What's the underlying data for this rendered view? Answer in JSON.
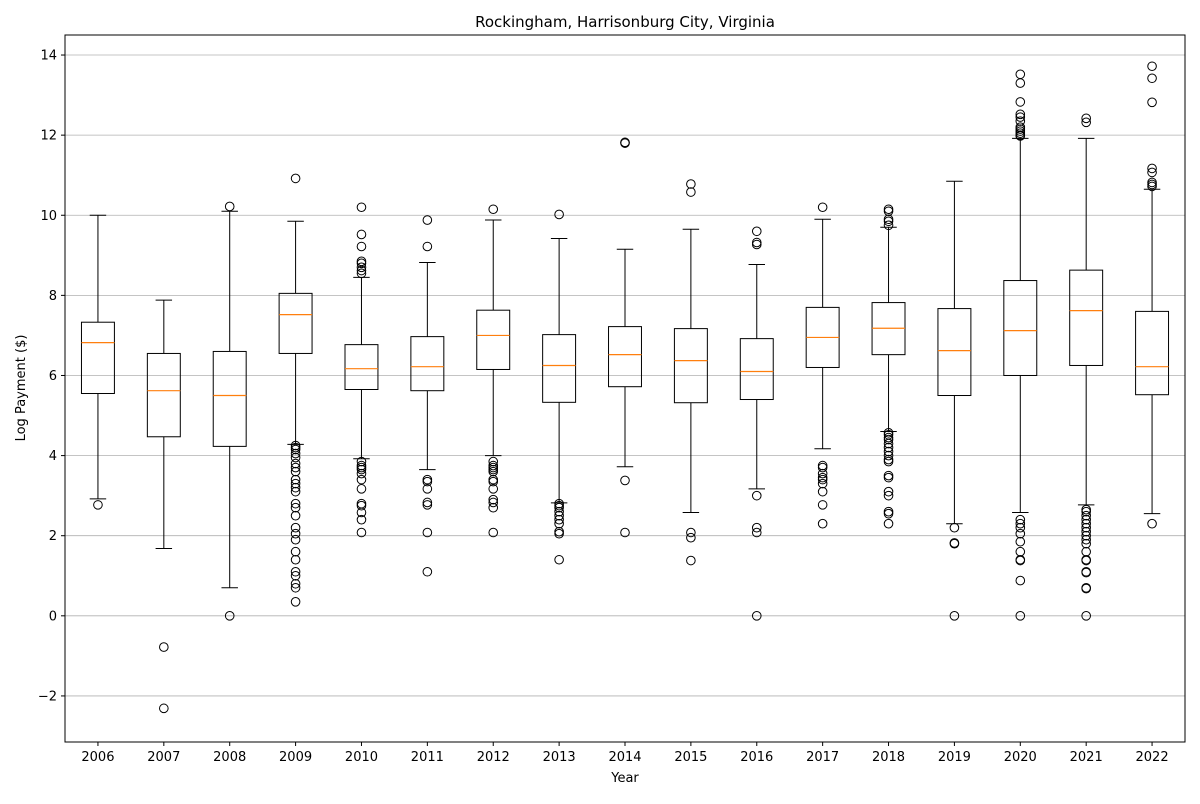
{
  "chart_data": {
    "type": "boxplot",
    "title": "Rockingham, Harrisonburg City, Virginia",
    "xlabel": "Year",
    "ylabel": "Log Payment ($)",
    "ylim": [
      -3.15,
      14.5
    ],
    "yticks": [
      -2,
      0,
      2,
      4,
      6,
      8,
      10,
      12,
      14
    ],
    "grid": "horizontal",
    "colors": {
      "box": "#000000",
      "median": "#ff7f0e",
      "grid": "#b0b0b0"
    },
    "boxes": [
      {
        "label": "2006",
        "whisker_low": 2.92,
        "q1": 5.55,
        "median": 6.82,
        "q3": 7.33,
        "whisker_high": 10.0,
        "outliers": [
          2.77
        ]
      },
      {
        "label": "2007",
        "whisker_low": 1.68,
        "q1": 4.47,
        "median": 5.62,
        "q3": 6.55,
        "whisker_high": 7.88,
        "outliers": [
          -0.78,
          -2.31
        ]
      },
      {
        "label": "2008",
        "whisker_low": 0.7,
        "q1": 4.23,
        "median": 5.5,
        "q3": 6.6,
        "whisker_high": 10.1,
        "outliers": [
          0.0,
          10.22
        ]
      },
      {
        "label": "2009",
        "whisker_low": 4.28,
        "q1": 6.55,
        "median": 7.52,
        "q3": 8.05,
        "whisker_high": 9.85,
        "outliers": [
          10.92,
          4.25,
          4.2,
          4.15,
          4.05,
          3.95,
          3.8,
          3.7,
          3.6,
          3.4,
          3.3,
          3.2,
          3.1,
          2.8,
          2.7,
          2.5,
          2.2,
          2.05,
          1.9,
          1.6,
          1.4,
          1.1,
          1.0,
          0.8,
          0.7,
          0.35
        ]
      },
      {
        "label": "2010",
        "whisker_low": 3.92,
        "q1": 5.65,
        "median": 6.17,
        "q3": 6.77,
        "whisker_high": 8.45,
        "outliers": [
          10.2,
          9.52,
          9.22,
          8.85,
          8.8,
          8.7,
          8.62,
          8.55,
          3.85,
          3.75,
          3.7,
          3.65,
          3.55,
          3.4,
          3.17,
          2.8,
          2.75,
          2.58,
          2.4,
          2.08
        ]
      },
      {
        "label": "2011",
        "whisker_low": 3.65,
        "q1": 5.62,
        "median": 6.22,
        "q3": 6.97,
        "whisker_high": 8.82,
        "outliers": [
          9.88,
          9.22,
          3.4,
          3.35,
          3.17,
          2.83,
          2.77,
          2.08,
          1.1
        ]
      },
      {
        "label": "2012",
        "whisker_low": 4.0,
        "q1": 6.15,
        "median": 7.0,
        "q3": 7.63,
        "whisker_high": 9.88,
        "outliers": [
          10.15,
          3.85,
          3.75,
          3.7,
          3.65,
          3.6,
          3.4,
          3.35,
          3.17,
          2.9,
          2.83,
          2.7,
          2.08
        ]
      },
      {
        "label": "2013",
        "whisker_low": 2.82,
        "q1": 5.33,
        "median": 6.25,
        "q3": 7.02,
        "whisker_high": 9.42,
        "outliers": [
          10.02,
          2.8,
          2.75,
          2.7,
          2.6,
          2.5,
          2.4,
          2.3,
          2.1,
          2.05,
          1.4
        ]
      },
      {
        "label": "2014",
        "whisker_low": 3.72,
        "q1": 5.72,
        "median": 6.52,
        "q3": 7.22,
        "whisker_high": 9.15,
        "outliers": [
          11.82,
          11.8,
          3.38,
          2.08
        ]
      },
      {
        "label": "2015",
        "whisker_low": 2.58,
        "q1": 5.32,
        "median": 6.37,
        "q3": 7.17,
        "whisker_high": 9.65,
        "outliers": [
          10.78,
          10.58,
          2.08,
          1.95,
          1.38
        ]
      },
      {
        "label": "2016",
        "whisker_low": 3.17,
        "q1": 5.4,
        "median": 6.1,
        "q3": 6.92,
        "whisker_high": 8.77,
        "outliers": [
          9.6,
          9.32,
          9.27,
          3.0,
          2.2,
          2.08,
          0.0
        ]
      },
      {
        "label": "2017",
        "whisker_low": 4.17,
        "q1": 6.2,
        "median": 6.95,
        "q3": 7.7,
        "whisker_high": 9.9,
        "outliers": [
          10.2,
          3.75,
          3.7,
          3.55,
          3.45,
          3.4,
          3.3,
          3.1,
          2.77,
          2.3
        ]
      },
      {
        "label": "2018",
        "whisker_low": 4.6,
        "q1": 6.52,
        "median": 7.18,
        "q3": 7.82,
        "whisker_high": 9.7,
        "outliers": [
          10.15,
          10.1,
          9.9,
          9.85,
          9.75,
          4.57,
          4.52,
          4.45,
          4.4,
          4.3,
          4.2,
          4.1,
          4.0,
          3.9,
          3.85,
          3.5,
          3.45,
          3.1,
          3.0,
          2.6,
          2.55,
          2.3
        ]
      },
      {
        "label": "2019",
        "whisker_low": 2.3,
        "q1": 5.5,
        "median": 6.62,
        "q3": 7.67,
        "whisker_high": 10.85,
        "outliers": [
          2.2,
          1.82,
          1.8,
          0.0
        ]
      },
      {
        "label": "2020",
        "whisker_low": 2.58,
        "q1": 6.0,
        "median": 7.12,
        "q3": 8.37,
        "whisker_high": 11.92,
        "outliers": [
          13.52,
          13.3,
          12.83,
          12.52,
          12.45,
          12.35,
          12.2,
          12.15,
          12.1,
          12.05,
          12.0,
          11.98,
          2.4,
          2.3,
          2.2,
          2.05,
          1.85,
          1.6,
          1.4,
          1.38,
          0.88,
          0.0
        ]
      },
      {
        "label": "2021",
        "whisker_low": 2.77,
        "q1": 6.25,
        "median": 7.62,
        "q3": 8.63,
        "whisker_high": 11.92,
        "outliers": [
          12.42,
          12.32,
          2.65,
          2.6,
          2.5,
          2.4,
          2.3,
          2.2,
          2.1,
          2.0,
          1.9,
          1.8,
          1.6,
          1.4,
          1.38,
          1.1,
          1.08,
          0.7,
          0.68,
          0.0
        ]
      },
      {
        "label": "2022",
        "whisker_low": 2.55,
        "q1": 5.52,
        "median": 6.22,
        "q3": 7.6,
        "whisker_high": 10.65,
        "outliers": [
          13.72,
          13.42,
          12.82,
          11.17,
          11.07,
          10.82,
          10.77,
          10.72,
          2.3
        ]
      }
    ]
  }
}
